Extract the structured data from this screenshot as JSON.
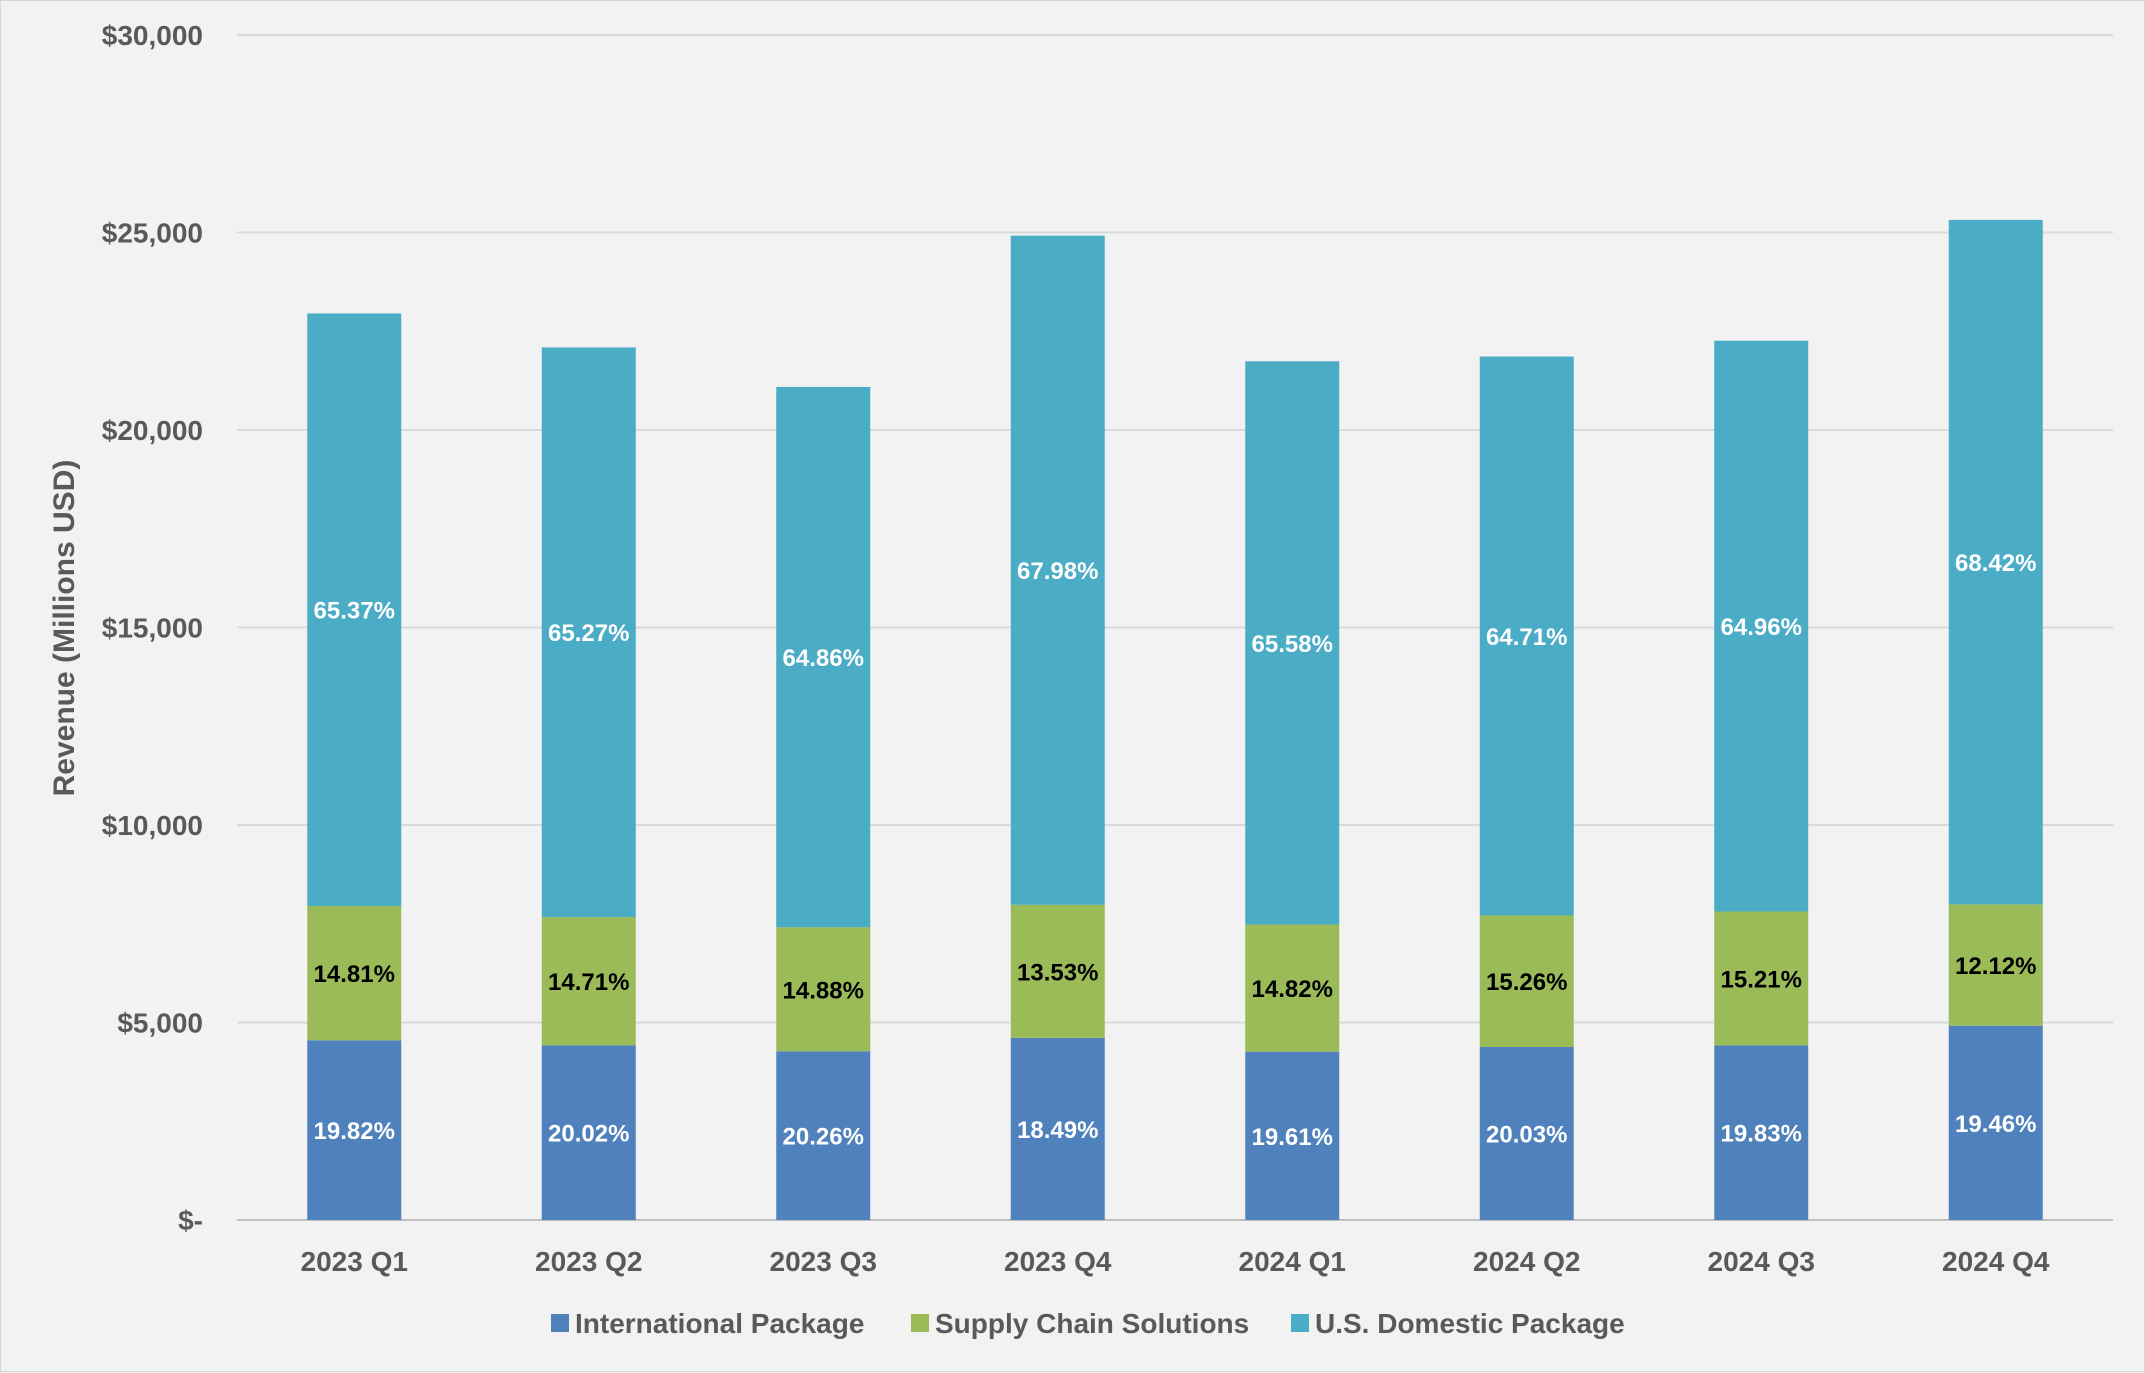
{
  "chart_data": {
    "type": "bar",
    "stacked": true,
    "categories": [
      "2023 Q1",
      "2023 Q2",
      "2023 Q3",
      "2023 Q4",
      "2024 Q1",
      "2024 Q2",
      "2024 Q3",
      "2024 Q4"
    ],
    "series": [
      {
        "name": "International Package",
        "color": "#4f81bd",
        "label_color": "#ffffff",
        "values": [
          4550,
          4420,
          4270,
          4610,
          4260,
          4380,
          4420,
          4920
        ],
        "labels": [
          "19.82%",
          "20.02%",
          "20.26%",
          "18.49%",
          "19.61%",
          "20.03%",
          "19.83%",
          "19.46%"
        ]
      },
      {
        "name": "Supply Chain Solutions",
        "color": "#9bbb59",
        "label_color": "#000000",
        "values": [
          3400,
          3250,
          3140,
          3370,
          3220,
          3330,
          3390,
          3070
        ],
        "labels": [
          "14.81%",
          "14.71%",
          "14.88%",
          "13.53%",
          "14.82%",
          "15.26%",
          "15.21%",
          "12.12%"
        ]
      },
      {
        "name": "U.S. Domestic Package",
        "color": "#4bacc6",
        "label_color": "#ffffff",
        "values": [
          15000,
          14420,
          13680,
          16940,
          14260,
          14150,
          14450,
          17330
        ],
        "labels": [
          "65.37%",
          "65.27%",
          "64.86%",
          "67.98%",
          "65.58%",
          "64.71%",
          "64.96%",
          "68.42%"
        ]
      }
    ],
    "ylabel": "Revenue (Millions USD)",
    "xlabel": "",
    "ylim": [
      0,
      30000
    ],
    "yticks": [
      0,
      5000,
      10000,
      15000,
      20000,
      25000,
      30000
    ],
    "ytick_labels": [
      "$-",
      "$5,000",
      "$10,000",
      "$15,000",
      "$20,000",
      "$25,000",
      "$30,000"
    ],
    "grid": true,
    "legend_position": "bottom"
  }
}
